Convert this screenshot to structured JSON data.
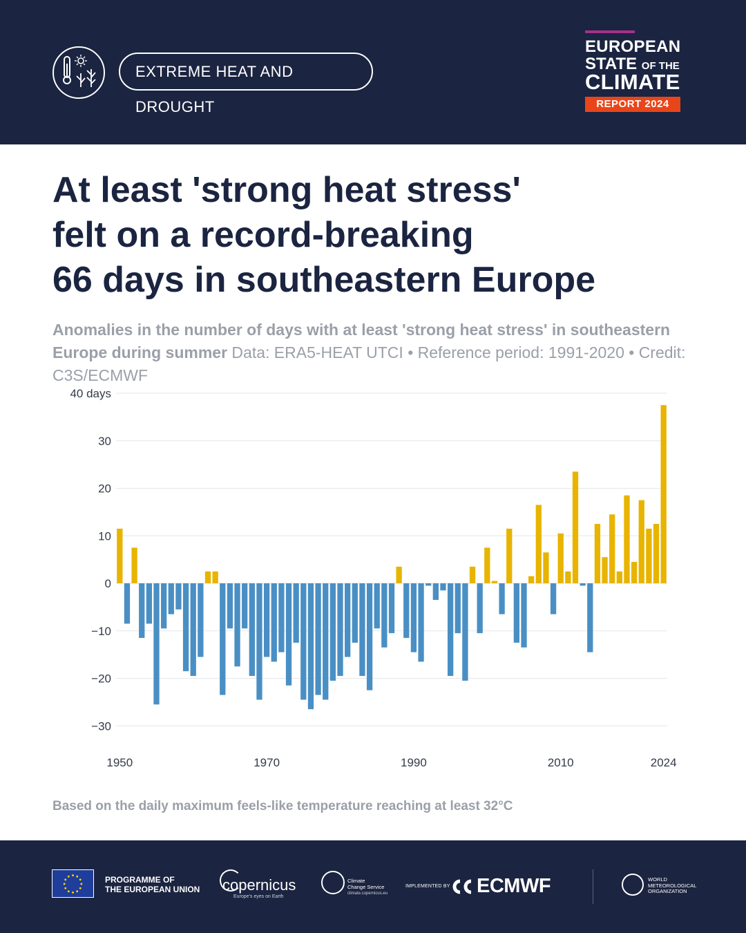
{
  "header": {
    "topic": "EXTREME HEAT AND DROUGHT",
    "topic_icon": "thermometer-sun-plant-icon",
    "brand": {
      "line1": "EUROPEAN",
      "line2_main": "STATE",
      "line2_small": "OF THE",
      "line3": "CLIMATE",
      "badge": "REPORT 2024",
      "accent_bar_color": "#a6308c",
      "badge_color": "#e8461a"
    }
  },
  "title": {
    "line1": "At least 'strong heat stress'",
    "line2": "felt on a record-breaking",
    "line3": "66 days in southeastern Europe"
  },
  "subtitle": {
    "bold": "Anomalies in the number of days with at least 'strong heat stress' in southeastern Europe during summer",
    "normal": " Data: ERA5-HEAT UTCI • Reference period: 1991-2020 • Credit: C3S/ECMWF"
  },
  "footnote": "Based on the daily maximum feels-like temperature reaching at least 32°C",
  "footer": {
    "eu_text_line1": "PROGRAMME OF",
    "eu_text_line2": "THE EUROPEAN UNION",
    "copernicus": "opernicus",
    "copernicus_tagline": "Europe's eyes on Earth",
    "c3s_line1": "Climate",
    "c3s_line2": "Change Service",
    "c3s_url": "climate.copernicus.eu",
    "implemented_by": "IMPLEMENTED BY",
    "ecmwf": "ECMWF",
    "wmo_line1": "WORLD",
    "wmo_line2": "METEOROLOGICAL",
    "wmo_line3": "ORGANIZATION"
  },
  "chart_data": {
    "type": "bar",
    "title": "",
    "xlabel": "",
    "ylabel": "days",
    "ylim": [
      -33,
      40
    ],
    "yticks": [
      40,
      30,
      20,
      10,
      0,
      -10,
      -20,
      -30
    ],
    "ytick_labels": [
      "40 days",
      "30",
      "20",
      "10",
      "0",
      "−10",
      "−20",
      "−30"
    ],
    "xtick_labels": [
      "1950",
      "1970",
      "1990",
      "2010",
      "2024"
    ],
    "grid": true,
    "legend": "none",
    "colors": {
      "positive": "#e8b400",
      "negative": "#4a8fc4",
      "grid": "#e4e6ea"
    },
    "x": [
      1950,
      1951,
      1952,
      1953,
      1954,
      1955,
      1956,
      1957,
      1958,
      1959,
      1960,
      1961,
      1962,
      1963,
      1964,
      1965,
      1966,
      1967,
      1968,
      1969,
      1970,
      1971,
      1972,
      1973,
      1974,
      1975,
      1976,
      1977,
      1978,
      1979,
      1980,
      1981,
      1982,
      1983,
      1984,
      1985,
      1986,
      1987,
      1988,
      1989,
      1990,
      1991,
      1992,
      1993,
      1994,
      1995,
      1996,
      1997,
      1998,
      1999,
      2000,
      2001,
      2002,
      2003,
      2004,
      2005,
      2006,
      2007,
      2008,
      2009,
      2010,
      2011,
      2012,
      2013,
      2014,
      2015,
      2016,
      2017,
      2018,
      2019,
      2020,
      2021,
      2022,
      2023,
      2024
    ],
    "values": [
      11.5,
      -8.5,
      7.5,
      -11.5,
      -8.5,
      -25.5,
      -9.5,
      -6.5,
      -5.5,
      -18.5,
      -19.5,
      -15.5,
      2.5,
      2.5,
      -23.5,
      -9.5,
      -17.5,
      -9.5,
      -19.5,
      -24.5,
      -15.5,
      -16.5,
      -14.5,
      -21.5,
      -12.5,
      -24.5,
      -26.5,
      -23.5,
      -24.5,
      -20.5,
      -19.5,
      -15.5,
      -12.5,
      -19.5,
      -22.5,
      -9.5,
      -13.5,
      -10.5,
      3.5,
      -11.5,
      -14.5,
      -16.5,
      -0.5,
      -3.5,
      -1.5,
      -19.5,
      -10.5,
      -20.5,
      3.5,
      -10.5,
      7.5,
      0.5,
      -6.5,
      11.5,
      -12.5,
      -13.5,
      1.5,
      16.5,
      6.5,
      -6.5,
      10.5,
      2.5,
      23.5,
      -0.5,
      -14.5,
      12.5,
      5.5,
      14.5,
      2.5,
      18.5,
      4.5,
      17.5,
      11.5,
      12.5,
      37.5
    ]
  }
}
